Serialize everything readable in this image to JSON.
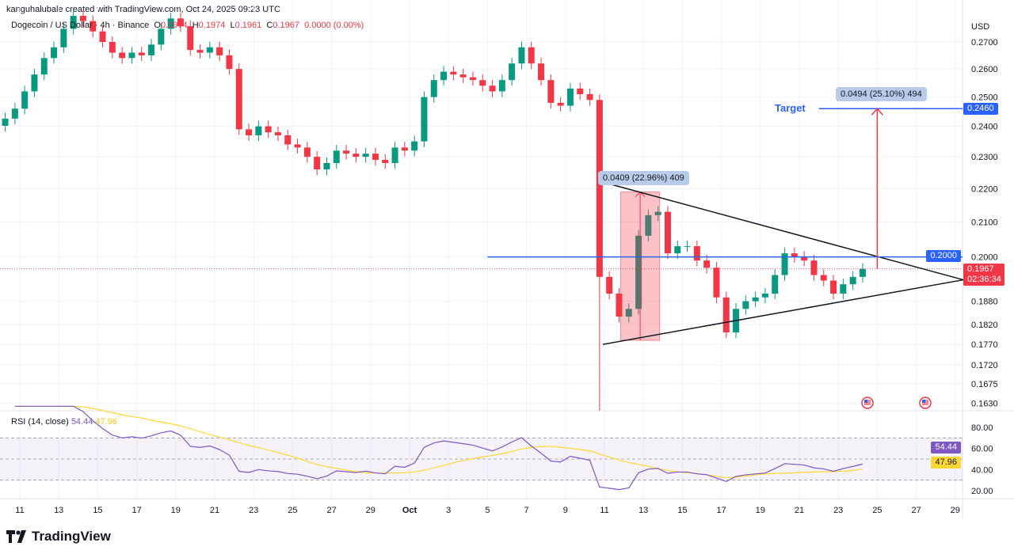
{
  "credit": "kanguhalubale created with TradingView.com, Oct 24, 2025 09:23 UTC",
  "legend": {
    "symbol": "Dogecoin / US Dollar · 4h · Binance",
    "o_label": "O",
    "o": "0.1974",
    "h_label": "H",
    "h": "0.1974",
    "l_label": "L",
    "l": "0.1961",
    "c_label": "C",
    "c": "0.1967",
    "change": "0.0000 (0.00%)"
  },
  "rsi_legend": {
    "name": "RSI (14, close)",
    "rsi": "54.44",
    "ma": "47.96"
  },
  "currency": "USD",
  "footer": {
    "brand": "TradingView",
    "logo_icon": "tradingview-logo-icon"
  },
  "colors": {
    "up": "#089981",
    "down": "#f23645",
    "line": "#2962ff",
    "rsi": "#7e57c2",
    "rsi_ma": "#fdd835"
  },
  "price_tags": {
    "level": "0.2000",
    "target": "0.2460",
    "last": "0.1967",
    "countdown": "02:36:34",
    "rsi": "54.44",
    "rsi_ma": "47.96"
  },
  "annotations": {
    "target_text": "Target",
    "measure1": "0.0409 (22.96%) 409",
    "measure2": "0.0494 (25.10%) 494"
  },
  "icons": [
    "us-flag-event-icon",
    "us-flag-event-icon"
  ],
  "chart_data": {
    "type": "candlestick",
    "scale": "log",
    "start": "2025-09-10T00:00",
    "interval_hours": 12,
    "closes": [
      0.2426,
      0.246,
      0.252,
      0.258,
      0.264,
      0.268,
      0.275,
      0.28,
      0.278,
      0.274,
      0.27,
      0.266,
      0.264,
      0.266,
      0.265,
      0.269,
      0.275,
      0.279,
      0.276,
      0.267,
      0.266,
      0.268,
      0.265,
      0.26,
      0.239,
      0.237,
      0.24,
      0.238,
      0.237,
      0.234,
      0.233,
      0.23,
      0.226,
      0.228,
      0.232,
      0.231,
      0.23,
      0.231,
      0.229,
      0.228,
      0.233,
      0.232,
      0.235,
      0.25,
      0.256,
      0.259,
      0.258,
      0.257,
      0.256,
      0.254,
      0.252,
      0.256,
      0.262,
      0.268,
      0.262,
      0.256,
      0.248,
      0.247,
      0.253,
      0.251,
      0.249,
      0.1945,
      0.19,
      0.184,
      0.186,
      0.206,
      0.212,
      0.213,
      0.201,
      0.203,
      0.203,
      0.199,
      0.197,
      0.189,
      0.18,
      0.186,
      0.188,
      0.189,
      0.19,
      0.195,
      0.201,
      0.2,
      0.199,
      0.195,
      0.1935,
      0.19,
      0.1925,
      0.1945,
      0.1967
    ],
    "low_overrides": {
      "61": 0.15
    },
    "y_ticks": [
      "0.2700",
      "0.2600",
      "0.2500",
      "0.2400",
      "0.2300",
      "0.2200",
      "0.2100",
      "0.2000",
      "0.1880",
      "0.1820",
      "0.1770",
      "0.1720",
      "0.1675",
      "0.1630"
    ],
    "x_ticks": [
      "11",
      "13",
      "15",
      "17",
      "19",
      "21",
      "23",
      "25",
      "27",
      "29",
      "Oct",
      "3",
      "5",
      "7",
      "9",
      "11",
      "13",
      "15",
      "17",
      "19",
      "21",
      "23",
      "25",
      "27",
      "29"
    ],
    "rsi_ticks": [
      "80.00",
      "60.00",
      "40.00",
      "20.00"
    ],
    "rsi_period": 14,
    "rsi_band": [
      30,
      70
    ],
    "lines": {
      "triangle_upper": [
        [
          "2025-10-10T22:00",
          0.222
        ],
        [
          "2025-10-29T10:00",
          0.1937
        ]
      ],
      "triangle_lower": [
        [
          "2025-10-10T22:00",
          0.177
        ],
        [
          "2025-10-29T10:00",
          0.1937
        ]
      ],
      "level": [
        [
          "2025-10-05T00:00",
          0.2
        ]
      ],
      "target": [
        [
          "2025-10-22T00:00",
          0.246
        ]
      ],
      "measure_rect": [
        [
          "2025-10-11T20:00",
          0.178
        ],
        [
          "2025-10-13T20:00",
          0.219
        ]
      ],
      "target_arrow": [
        [
          "2025-10-25T00:00",
          0.1967
        ],
        [
          "2025-10-25T00:00",
          0.246
        ]
      ]
    }
  }
}
